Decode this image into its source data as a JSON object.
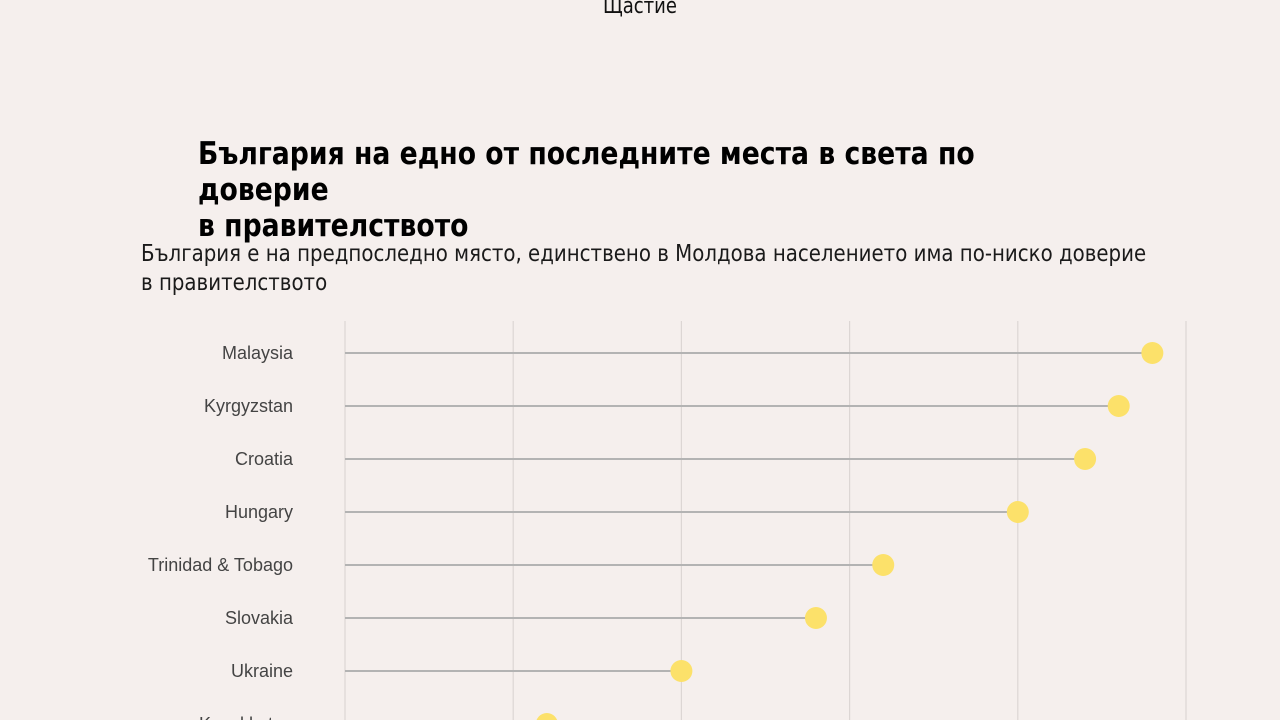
{
  "header": {
    "top_label": "Щастие"
  },
  "chart_data": {
    "type": "lollipop",
    "title": "България на едно от последните места в света по доверие\n в правителството",
    "subtitle": "България е на предпоследно място, единствено в Молдова населението има по-ниско доверие в правителството",
    "categories": [
      "Malaysia",
      "Kyrgyzstan",
      "Croatia",
      "Hungary",
      "Trinidad & Tobago",
      "Slovakia",
      "Ukraine",
      "Kazakhstan"
    ],
    "values": [
      4.8,
      4.6,
      4.4,
      4.0,
      3.2,
      2.8,
      2.0,
      1.2
    ],
    "xlim": [
      0,
      5
    ],
    "grid": true,
    "colors": {
      "dot": "#fce16a",
      "stem": "#b3b3b3",
      "grid": "#dcd6d4"
    }
  }
}
